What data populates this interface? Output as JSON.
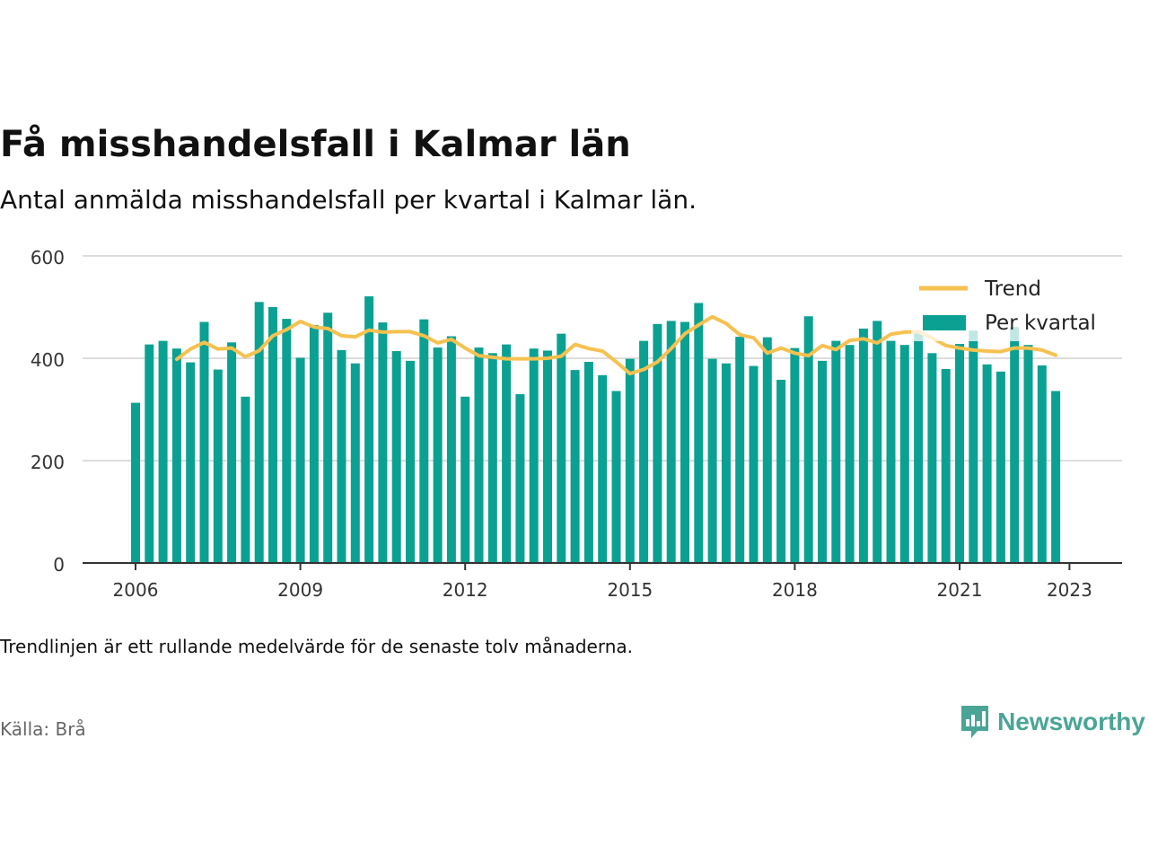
{
  "title": "Få misshandelsfall i Kalmar län",
  "subtitle": "Antal anmälda misshandelsfall per kvartal i Kalmar län.",
  "note": "Trendlinjen är ett rullande medelvärde för de senaste tolv månaderna.",
  "source": "Källa: Brå",
  "brand": {
    "name": "Newsworthy",
    "icon": "newsworthy-logo-icon",
    "color": "#4aa596"
  },
  "colors": {
    "bars": "#0aa192",
    "trend": "#f5c150",
    "grid": "#dddddd",
    "axis": "#333333"
  },
  "chart_data": {
    "type": "bar",
    "x_start": "2006 Q1",
    "x_ticks": [
      "2006",
      "2009",
      "2012",
      "2015",
      "2018",
      "2021",
      "2023"
    ],
    "y_ticks": [
      0,
      200,
      400,
      600
    ],
    "ylim": [
      0,
      600
    ],
    "grid": true,
    "legend_position": "top-right",
    "series": [
      {
        "name": "Per kvartal",
        "type": "bar",
        "values": [
          313,
          427,
          434,
          419,
          392,
          471,
          378,
          431,
          325,
          510,
          500,
          477,
          401,
          465,
          489,
          416,
          390,
          521,
          470,
          414,
          395,
          476,
          421,
          443,
          325,
          421,
          410,
          427,
          330,
          419,
          415,
          448,
          377,
          393,
          367,
          336,
          399,
          434,
          467,
          473,
          471,
          508,
          399,
          390,
          442,
          385,
          441,
          358,
          420,
          482,
          395,
          434,
          426,
          458,
          473,
          434,
          426,
          451,
          410,
          379,
          428,
          454,
          388,
          374,
          461,
          426,
          386,
          336
        ],
        "note": "values: one per quarter starting 2006 Q1"
      },
      {
        "name": "Trend",
        "type": "line",
        "values": [
          null,
          null,
          null,
          398,
          418,
          431,
          418,
          420,
          403,
          415,
          444,
          456,
          472,
          461,
          458,
          444,
          442,
          455,
          451,
          452,
          452,
          444,
          430,
          437,
          420,
          405,
          402,
          399,
          399,
          399,
          400,
          404,
          427,
          419,
          414,
          393,
          370,
          378,
          393,
          419,
          448,
          465,
          481,
          468,
          446,
          440,
          410,
          420,
          410,
          405,
          425,
          417,
          435,
          438,
          430,
          447,
          451,
          452,
          440,
          425,
          420,
          416,
          414,
          413,
          420,
          420,
          416,
          406
        ]
      }
    ]
  }
}
